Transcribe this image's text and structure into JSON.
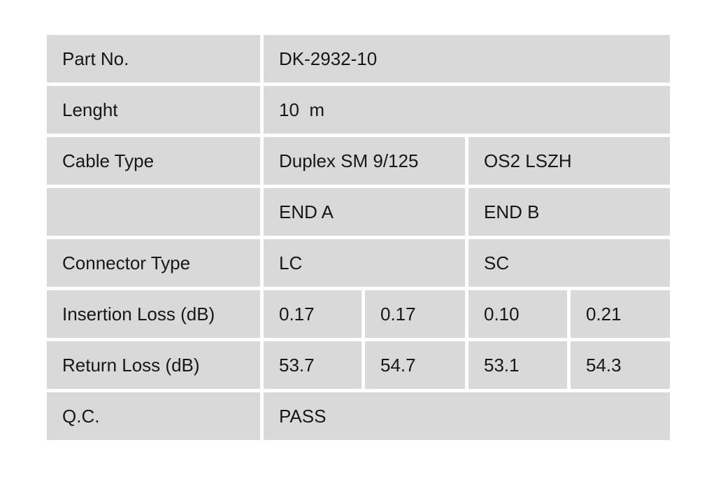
{
  "page": {
    "background_color": "#ffffff"
  },
  "table": {
    "cell_background_color": "#d9d9d9",
    "text_color": "#171717",
    "rows": [
      {
        "label": "Part No.",
        "value": "DK-2932-10"
      },
      {
        "label": "Lenght",
        "value": "10  m"
      },
      {
        "label": "Cable Type",
        "col_a": "Duplex SM 9/125",
        "col_b": "OS2 LSZH"
      },
      {
        "label": "",
        "col_a": "END A",
        "col_b": "END B"
      },
      {
        "label": "Connector Type",
        "col_a": "LC",
        "col_b": "SC"
      },
      {
        "label": "Insertion Loss (dB)",
        "values": [
          "0.17",
          "0.17",
          "0.10",
          "0.21"
        ]
      },
      {
        "label": "Return Loss (dB)",
        "values": [
          "53.7",
          "54.7",
          "53.1",
          "54.3"
        ]
      },
      {
        "label": "Q.C.",
        "value": "PASS"
      }
    ]
  }
}
